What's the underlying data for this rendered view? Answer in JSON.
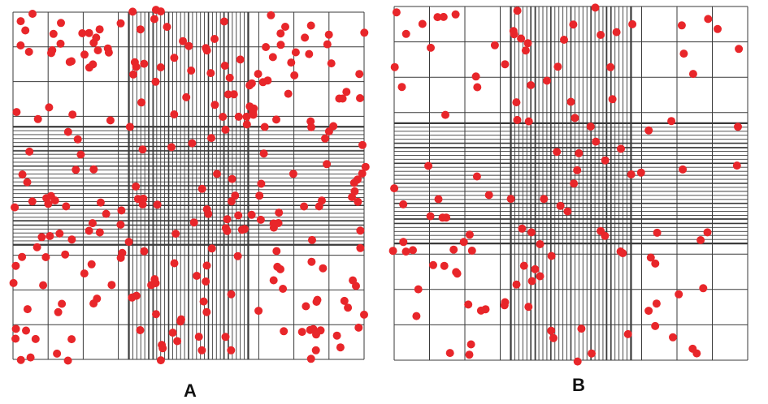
{
  "panels": [
    {
      "id": "A",
      "label": "A",
      "dot_count": 260,
      "seed": 17
    },
    {
      "id": "B",
      "label": "B",
      "dot_count": 125,
      "seed": 91
    }
  ],
  "colors": {
    "grid_line": "#3a3a3a",
    "dot_fill": "#e8262a",
    "label": "#111111",
    "background": "#ffffff"
  }
}
